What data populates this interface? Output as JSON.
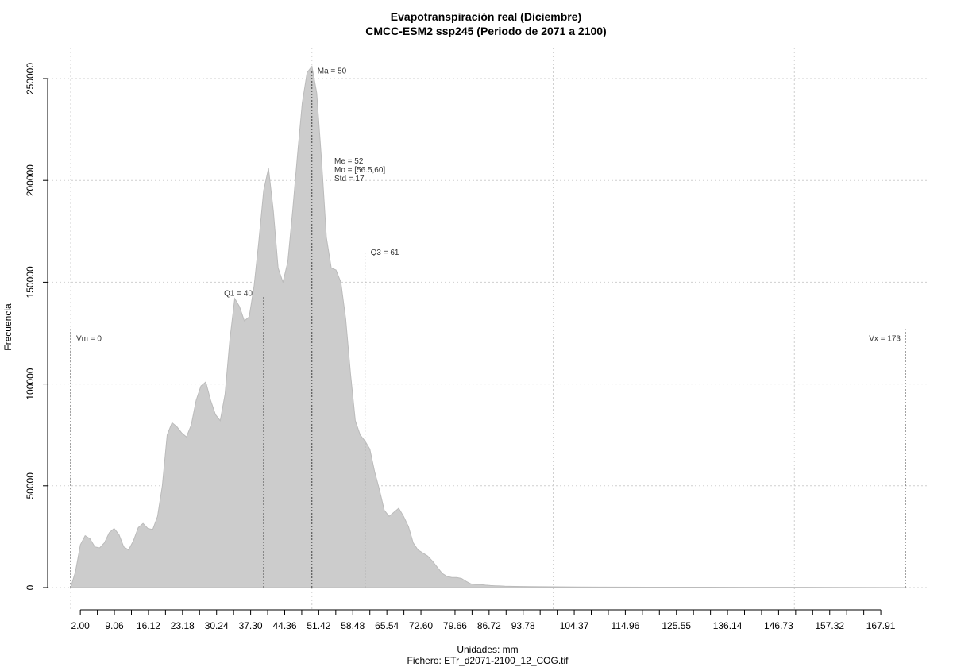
{
  "chart_data": {
    "type": "area",
    "title": "Evapotranspiración real (Diciembre)",
    "subtitle": "CMCC-ESM2 ssp245 (Periodo de 2071 a 2100)",
    "xlabel": "Unidades: mm",
    "ylabel": "Frecuencia",
    "footer": "Fichero: ETr_d2071-2100_12_COG.tif",
    "xlim": [
      -0.5,
      177
    ],
    "ylim": [
      0,
      260000
    ],
    "x_tick_values": [
      2.0,
      9.06,
      16.12,
      23.18,
      30.24,
      37.3,
      44.36,
      51.42,
      58.48,
      65.54,
      72.6,
      79.66,
      86.72,
      93.78,
      104.37,
      114.96,
      125.55,
      136.14,
      146.73,
      157.32,
      167.91
    ],
    "x_tick_labels": [
      "2.00",
      "9.06",
      "16.12",
      "23.18",
      "30.24",
      "37.30",
      "44.36",
      "51.42",
      "58.48",
      "65.54",
      "72.60",
      "79.66",
      "86.72",
      "93.78",
      "104.37",
      "114.96",
      "125.55",
      "136.14",
      "146.73",
      "157.32",
      "167.91"
    ],
    "y_ticks": [
      0,
      50000,
      100000,
      150000,
      200000,
      250000
    ],
    "y_tick_labels": [
      "0",
      "50000",
      "100000",
      "150000",
      "200000",
      "250000"
    ],
    "grid": true,
    "grid_x": [
      0,
      50,
      100,
      150
    ],
    "x": [
      0,
      1,
      2,
      3,
      4,
      5,
      6,
      7,
      8,
      9,
      10,
      11,
      12,
      13,
      14,
      15,
      16,
      17,
      18,
      19,
      20,
      21,
      22,
      23,
      24,
      25,
      26,
      27,
      28,
      29,
      30,
      31,
      32,
      33,
      34,
      35,
      36,
      37,
      38,
      39,
      40,
      41,
      42,
      43,
      44,
      45,
      46,
      47,
      48,
      49,
      50,
      51,
      52,
      53,
      54,
      55,
      56,
      57,
      58,
      59,
      60,
      61,
      62,
      63,
      64,
      65,
      66,
      67,
      68,
      69,
      70,
      71,
      72,
      73,
      74,
      75,
      76,
      77,
      78,
      79,
      80,
      81,
      82,
      83,
      84,
      85,
      86,
      87,
      88,
      89,
      90,
      92,
      95,
      100,
      105,
      110,
      120,
      140,
      160,
      172,
      173
    ],
    "y": [
      0,
      8000,
      21000,
      25500,
      24000,
      20000,
      19500,
      22000,
      27000,
      29000,
      26000,
      20000,
      18500,
      23000,
      29500,
      31500,
      29000,
      28500,
      35000,
      50000,
      75000,
      81000,
      79000,
      76000,
      74000,
      80000,
      92000,
      99000,
      101000,
      92000,
      85000,
      82000,
      95000,
      122000,
      142000,
      138000,
      131000,
      133000,
      148000,
      170000,
      195000,
      206000,
      185000,
      157000,
      150000,
      160000,
      185000,
      212000,
      238000,
      253000,
      256000,
      243000,
      210000,
      172000,
      157000,
      156000,
      150000,
      132000,
      105000,
      82000,
      75000,
      72000,
      68000,
      57000,
      48000,
      38000,
      35000,
      37000,
      39000,
      35000,
      30000,
      22000,
      18500,
      17000,
      15500,
      13000,
      10000,
      7000,
      5500,
      5000,
      5000,
      4500,
      3000,
      1800,
      1500,
      1500,
      1200,
      1000,
      900,
      800,
      700,
      600,
      500,
      400,
      300,
      250,
      200,
      150,
      100,
      50,
      0
    ],
    "fill_color": "#cccccc",
    "stroke_color": "#bbbbbb",
    "vlines": [
      {
        "x": 0,
        "top": 127000,
        "label": "Vm = 0"
      },
      {
        "x": 40,
        "top": 143000,
        "label": "Q1 = 40"
      },
      {
        "x": 50,
        "top": 254000,
        "label": "Ma = 50"
      },
      {
        "x": 61,
        "top": 165000,
        "label": "Q3 = 61"
      },
      {
        "x": 173,
        "top": 127000,
        "label": "Vx = 173"
      }
    ],
    "stats": [
      "Me = 52",
      "Mo = [56.5,60]",
      "Std = 17"
    ]
  }
}
